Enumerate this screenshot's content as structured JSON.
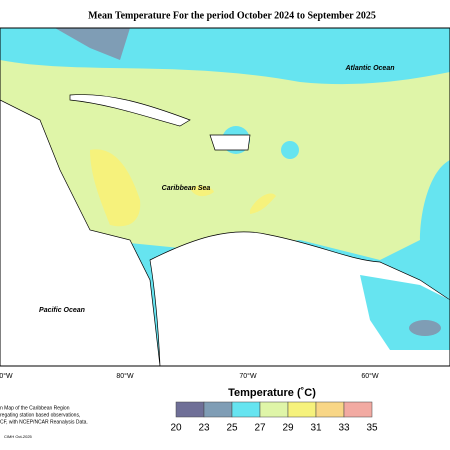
{
  "map": {
    "title": "Mean Temperature For the period October 2024 to September 2025",
    "labels": [
      "Atlantic Ocean",
      "Caribbean Sea",
      "Pacific Ocean"
    ],
    "longitudes": [
      "0°W",
      "80°W",
      "70°W",
      "60°W"
    ],
    "notes": [
      "n Map of the Caribbean Region",
      "regating station based observations,",
      "CF, with NCEP/NCAR Reanalysis Data.",
      "CIMH Oct-2025"
    ]
  },
  "legend": {
    "title": "Temperature (˚C)",
    "ticks": [
      20,
      23,
      25,
      27,
      29,
      31,
      33,
      35
    ],
    "colors": [
      "#6f6f97",
      "#7f9db5",
      "#66e4f0",
      "#dff5a8",
      "#f6f27c",
      "#f8d686",
      "#f2aaa2"
    ]
  }
}
